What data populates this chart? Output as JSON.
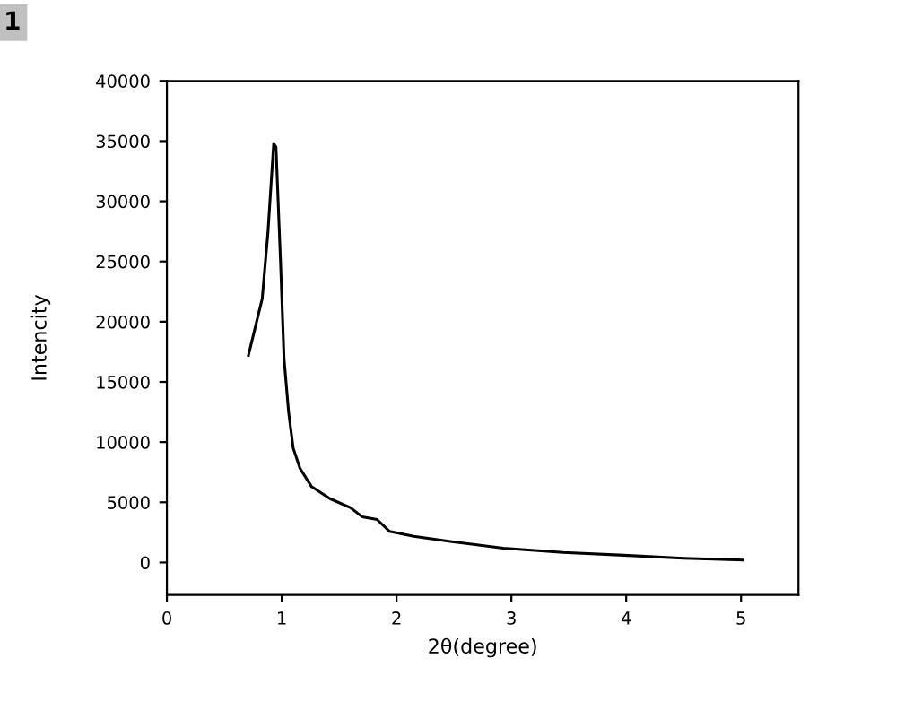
{
  "chart_data": {
    "type": "line",
    "xlabel": "2θ(degree)",
    "ylabel": "Intencity",
    "annotations": [
      "1"
    ],
    "x": [
      0.71,
      0.83,
      0.88,
      0.93,
      0.95,
      0.99,
      1.02,
      1.06,
      1.1,
      1.16,
      1.26,
      1.42,
      1.6,
      1.7,
      1.83,
      1.94,
      2.15,
      2.51,
      2.93,
      3.45,
      3.98,
      4.5,
      5.01
    ],
    "series": [
      {
        "color": "#000000",
        "values": [
          17200,
          21900,
          27400,
          34800,
          34500,
          24900,
          16950,
          12500,
          9500,
          7800,
          6300,
          5300,
          4550,
          3800,
          3570,
          2580,
          2180,
          1690,
          1190,
          840,
          600,
          350,
          200
        ]
      }
    ],
    "xlim": [
      0,
      5.5
    ],
    "xticks": [
      0,
      1,
      2,
      3,
      4,
      5
    ],
    "ylim": [
      -2700,
      40000
    ],
    "yticks": [
      0,
      5000,
      10000,
      15000,
      20000,
      25000,
      30000,
      35000,
      40000
    ],
    "grid": false,
    "legend": false,
    "marker": "none",
    "line_style": "solid"
  }
}
